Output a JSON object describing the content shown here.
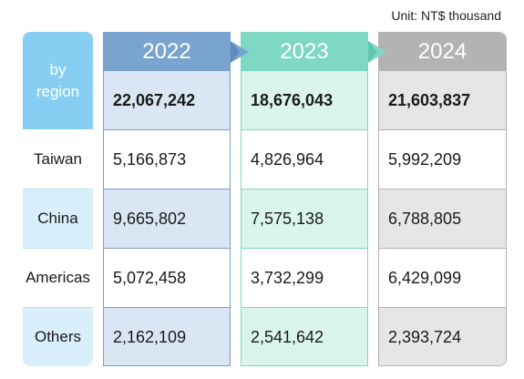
{
  "unit_label": "Unit: NT$ thousand",
  "table": {
    "corner_label_line1": "by",
    "corner_label_line2": "region",
    "years": [
      "2022",
      "2023",
      "2024"
    ],
    "totals": [
      "22,067,242",
      "18,676,043",
      "21,603,837"
    ],
    "rows": [
      {
        "region": "Taiwan",
        "values": [
          "5,166,873",
          "4,826,964",
          "5,992,209"
        ]
      },
      {
        "region": "China",
        "values": [
          "9,665,802",
          "7,575,138",
          "6,788,805"
        ]
      },
      {
        "region": "Americas",
        "values": [
          "5,072,458",
          "3,732,299",
          "6,429,099"
        ]
      },
      {
        "region": "Others",
        "values": [
          "2,162,109",
          "2,541,642",
          "2,393,724"
        ]
      }
    ]
  },
  "colors": {
    "region_header": "#86cff2",
    "year_2022": "#79a4cf",
    "year_2023": "#7fd8c4",
    "year_2024": "#b3b3b3"
  }
}
